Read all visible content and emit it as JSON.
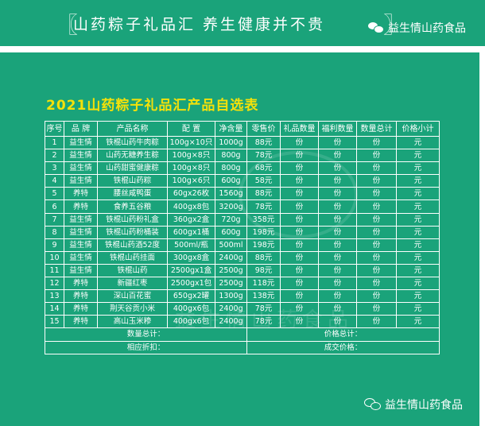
{
  "banner": {
    "title": "山药粽子礼品汇  养生健康并不贵",
    "brand": "益生情山药食品"
  },
  "heading": "2021山药粽子礼品汇产品自选表",
  "watermark": "益生情山药食品",
  "table": {
    "headers": [
      "序号",
      "品 牌",
      "产品名称",
      "配 置",
      "净含量",
      "零售价",
      "礼品数量",
      "福利数量",
      "数量总计",
      "价格小计"
    ],
    "unit_qty": "份",
    "unit_price": "元",
    "rows": [
      {
        "no": "1",
        "brand": "益生情",
        "name": "铁棍山药牛肉粽",
        "spec": "100g×10只",
        "weight": "1000g",
        "price": "88元"
      },
      {
        "no": "2",
        "brand": "益生情",
        "name": "山药无糖养生粽",
        "spec": "100g×8只",
        "weight": "800g",
        "price": "78元"
      },
      {
        "no": "3",
        "brand": "益生情",
        "name": "山药甜蜜健康粽",
        "spec": "100g×8只",
        "weight": "800g",
        "price": "68元"
      },
      {
        "no": "4",
        "brand": "益生情",
        "name": "铁棍山药粽",
        "spec": "100g×6只",
        "weight": "600g",
        "price": "58元"
      },
      {
        "no": "5",
        "brand": "养特",
        "name": "腰丝咸鸭蛋",
        "spec": "60gx26枚",
        "weight": "1560g",
        "price": "88元"
      },
      {
        "no": "6",
        "brand": "养特",
        "name": "食养五谷粮",
        "spec": "400gx8包",
        "weight": "3200g",
        "price": "78元"
      },
      {
        "no": "7",
        "brand": "益生情",
        "name": "铁棍山药粉礼盒",
        "spec": "360gx2盒",
        "weight": "720g",
        "price": "358元"
      },
      {
        "no": "8",
        "brand": "益生情",
        "name": "铁棍山药粉桶装",
        "spec": "600gx1桶",
        "weight": "600g",
        "price": "198元"
      },
      {
        "no": "9",
        "brand": "益生情",
        "name": "铁棍山药酒52度",
        "spec": "500ml/瓶",
        "weight": "500ml",
        "price": "198元"
      },
      {
        "no": "10",
        "brand": "益生情",
        "name": "铁棍山药挂面",
        "spec": "300gx8盒",
        "weight": "2400g",
        "price": "88元"
      },
      {
        "no": "11",
        "brand": "益生情",
        "name": "铁棍山药",
        "spec": "2500gx1盒",
        "weight": "2500g",
        "price": "98元"
      },
      {
        "no": "12",
        "brand": "养特",
        "name": "新疆红枣",
        "spec": "2500gx1包",
        "weight": "2500g",
        "price": "118元"
      },
      {
        "no": "13",
        "brand": "养特",
        "name": "深山百花蜜",
        "spec": "650gx2罐",
        "weight": "1300g",
        "price": "138元"
      },
      {
        "no": "14",
        "brand": "养特",
        "name": "荆天谷贡小米",
        "spec": "400gx6包",
        "weight": "2400g",
        "price": "78元"
      },
      {
        "no": "15",
        "brand": "养特",
        "name": "高山玉米糁",
        "spec": "400gx6包",
        "weight": "2400g",
        "price": "78元"
      }
    ],
    "footer": {
      "qty_total": "数量总计：",
      "price_total": "价格总计：",
      "discount": "相应折扣：",
      "deal_price": "成交价格："
    }
  },
  "colors": {
    "background": "#1aa37a",
    "heading": "#f4e10a",
    "text": "#ffffff"
  }
}
